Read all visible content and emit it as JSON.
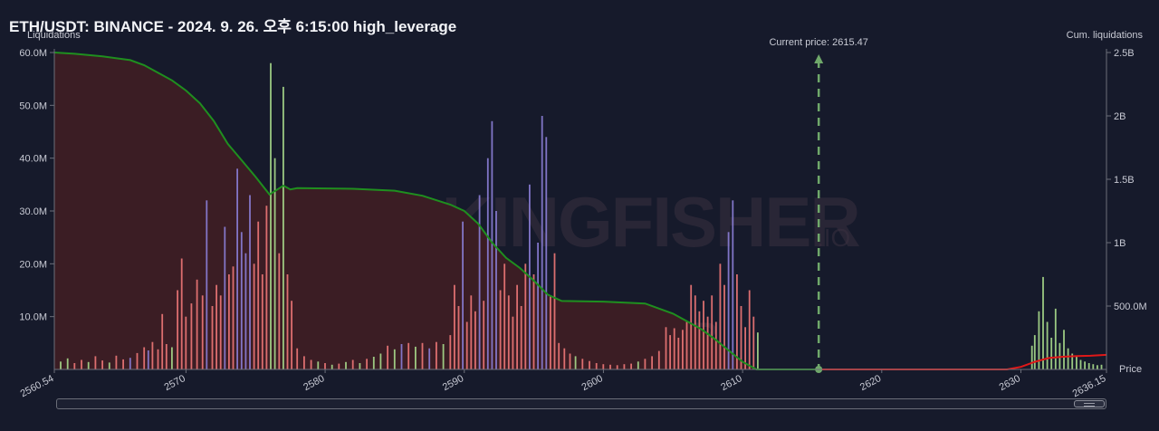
{
  "title": "ETH/USDT: BINANCE - 2024. 9. 26. 오후 6:15:00 high_leverage",
  "watermark": {
    "brand": "THE KINGFISHER",
    "suffix": ".IO"
  },
  "chart_data": {
    "type": "bar",
    "ylabel_left": "Liquidations",
    "ylabel_right": "Cum. liquidations",
    "xlabel": "Price",
    "current_price_label": "Current price: 2615.47",
    "current_price": 2615.47,
    "xlim": [
      2560.54,
      2636.15
    ],
    "ylim_left": [
      0,
      60000000
    ],
    "ylim_right": [
      0,
      2500000000
    ],
    "x_ticks": [
      2560.54,
      2570,
      2580,
      2590,
      2600,
      2610,
      2620,
      2630,
      2636.15
    ],
    "x_tick_labels": [
      "2560.54",
      "2570",
      "2580",
      "2590",
      "2600",
      "2610",
      "2620",
      "2630",
      "2636.15"
    ],
    "y_left_ticks": [
      10000000,
      20000000,
      30000000,
      40000000,
      50000000,
      60000000
    ],
    "y_left_tick_labels": [
      "10.0M",
      "20.0M",
      "30.0M",
      "40.0M",
      "50.0M",
      "60.0M"
    ],
    "y_right_ticks": [
      500000000,
      1000000000,
      1500000000,
      2000000000,
      2500000000
    ],
    "y_right_tick_labels": [
      "500.0M",
      "1B",
      "1.5B",
      "2B",
      "2.5B"
    ],
    "series_colors": {
      "long_liq_bars": "#f07878",
      "long_liq_bars_alt": "#8c7fd8",
      "short_liq_bars": "#a8dc8c",
      "cum_long": "#1f8f1f",
      "cum_short": "#e01818",
      "cum_long_fill": "#3b1d24",
      "current_price_line": "#6fa86a"
    },
    "bars": [
      {
        "x": 2561.0,
        "y": 1500000,
        "c": "s"
      },
      {
        "x": 2561.5,
        "y": 2100000,
        "c": "s"
      },
      {
        "x": 2562.0,
        "y": 1200000,
        "c": "r"
      },
      {
        "x": 2562.5,
        "y": 1800000,
        "c": "r"
      },
      {
        "x": 2563.0,
        "y": 1400000,
        "c": "s"
      },
      {
        "x": 2563.5,
        "y": 2500000,
        "c": "r"
      },
      {
        "x": 2564.0,
        "y": 1700000,
        "c": "r"
      },
      {
        "x": 2564.5,
        "y": 1300000,
        "c": "s"
      },
      {
        "x": 2565.0,
        "y": 2600000,
        "c": "r"
      },
      {
        "x": 2565.5,
        "y": 1900000,
        "c": "r"
      },
      {
        "x": 2566.0,
        "y": 2200000,
        "c": "b"
      },
      {
        "x": 2566.5,
        "y": 3100000,
        "c": "r"
      },
      {
        "x": 2567.0,
        "y": 4200000,
        "c": "r"
      },
      {
        "x": 2567.3,
        "y": 3600000,
        "c": "b"
      },
      {
        "x": 2567.6,
        "y": 5200000,
        "c": "r"
      },
      {
        "x": 2568.0,
        "y": 3800000,
        "c": "r"
      },
      {
        "x": 2568.3,
        "y": 10500000,
        "c": "r"
      },
      {
        "x": 2568.6,
        "y": 4800000,
        "c": "r"
      },
      {
        "x": 2569.0,
        "y": 4200000,
        "c": "s"
      },
      {
        "x": 2569.4,
        "y": 15000000,
        "c": "r"
      },
      {
        "x": 2569.7,
        "y": 21000000,
        "c": "r"
      },
      {
        "x": 2570.0,
        "y": 10000000,
        "c": "r"
      },
      {
        "x": 2570.4,
        "y": 12500000,
        "c": "r"
      },
      {
        "x": 2570.8,
        "y": 17000000,
        "c": "r"
      },
      {
        "x": 2571.2,
        "y": 14000000,
        "c": "r"
      },
      {
        "x": 2571.5,
        "y": 32000000,
        "c": "b"
      },
      {
        "x": 2571.9,
        "y": 12000000,
        "c": "r"
      },
      {
        "x": 2572.2,
        "y": 16000000,
        "c": "r"
      },
      {
        "x": 2572.5,
        "y": 14000000,
        "c": "r"
      },
      {
        "x": 2572.8,
        "y": 27000000,
        "c": "b"
      },
      {
        "x": 2573.1,
        "y": 18000000,
        "c": "r"
      },
      {
        "x": 2573.4,
        "y": 19500000,
        "c": "r"
      },
      {
        "x": 2573.7,
        "y": 38000000,
        "c": "b"
      },
      {
        "x": 2574.0,
        "y": 26000000,
        "c": "b"
      },
      {
        "x": 2574.3,
        "y": 22000000,
        "c": "b"
      },
      {
        "x": 2574.6,
        "y": 33000000,
        "c": "b"
      },
      {
        "x": 2574.9,
        "y": 20000000,
        "c": "r"
      },
      {
        "x": 2575.2,
        "y": 28000000,
        "c": "r"
      },
      {
        "x": 2575.5,
        "y": 18000000,
        "c": "r"
      },
      {
        "x": 2575.8,
        "y": 31000000,
        "c": "r"
      },
      {
        "x": 2576.1,
        "y": 58000000,
        "c": "s"
      },
      {
        "x": 2576.4,
        "y": 40000000,
        "c": "s"
      },
      {
        "x": 2576.7,
        "y": 22000000,
        "c": "r"
      },
      {
        "x": 2577.0,
        "y": 53500000,
        "c": "s"
      },
      {
        "x": 2577.3,
        "y": 18000000,
        "c": "r"
      },
      {
        "x": 2577.6,
        "y": 13000000,
        "c": "r"
      },
      {
        "x": 2578.0,
        "y": 4000000,
        "c": "r"
      },
      {
        "x": 2578.5,
        "y": 2500000,
        "c": "r"
      },
      {
        "x": 2579.0,
        "y": 1800000,
        "c": "r"
      },
      {
        "x": 2579.5,
        "y": 1500000,
        "c": "s"
      },
      {
        "x": 2580.0,
        "y": 1200000,
        "c": "r"
      },
      {
        "x": 2580.5,
        "y": 900000,
        "c": "s"
      },
      {
        "x": 2581.0,
        "y": 1100000,
        "c": "r"
      },
      {
        "x": 2581.5,
        "y": 1400000,
        "c": "s"
      },
      {
        "x": 2582.0,
        "y": 1800000,
        "c": "r"
      },
      {
        "x": 2582.5,
        "y": 1200000,
        "c": "s"
      },
      {
        "x": 2583.0,
        "y": 2000000,
        "c": "r"
      },
      {
        "x": 2583.5,
        "y": 2400000,
        "c": "s"
      },
      {
        "x": 2584.0,
        "y": 3000000,
        "c": "s"
      },
      {
        "x": 2584.5,
        "y": 4500000,
        "c": "r"
      },
      {
        "x": 2585.0,
        "y": 3800000,
        "c": "s"
      },
      {
        "x": 2585.5,
        "y": 4800000,
        "c": "b"
      },
      {
        "x": 2586.0,
        "y": 5000000,
        "c": "r"
      },
      {
        "x": 2586.5,
        "y": 4300000,
        "c": "s"
      },
      {
        "x": 2587.0,
        "y": 5000000,
        "c": "r"
      },
      {
        "x": 2587.5,
        "y": 4000000,
        "c": "b"
      },
      {
        "x": 2588.0,
        "y": 5200000,
        "c": "r"
      },
      {
        "x": 2588.5,
        "y": 4800000,
        "c": "s"
      },
      {
        "x": 2589.0,
        "y": 6500000,
        "c": "r"
      },
      {
        "x": 2589.3,
        "y": 16000000,
        "c": "r"
      },
      {
        "x": 2589.6,
        "y": 12000000,
        "c": "r"
      },
      {
        "x": 2589.9,
        "y": 28000000,
        "c": "b"
      },
      {
        "x": 2590.2,
        "y": 9000000,
        "c": "r"
      },
      {
        "x": 2590.5,
        "y": 14000000,
        "c": "r"
      },
      {
        "x": 2590.8,
        "y": 11000000,
        "c": "r"
      },
      {
        "x": 2591.1,
        "y": 33000000,
        "c": "b"
      },
      {
        "x": 2591.4,
        "y": 13000000,
        "c": "r"
      },
      {
        "x": 2591.7,
        "y": 40000000,
        "c": "b"
      },
      {
        "x": 2592.0,
        "y": 47000000,
        "c": "b"
      },
      {
        "x": 2592.3,
        "y": 30000000,
        "c": "b"
      },
      {
        "x": 2592.6,
        "y": 15000000,
        "c": "r"
      },
      {
        "x": 2592.9,
        "y": 20000000,
        "c": "r"
      },
      {
        "x": 2593.2,
        "y": 14000000,
        "c": "r"
      },
      {
        "x": 2593.5,
        "y": 10000000,
        "c": "r"
      },
      {
        "x": 2593.8,
        "y": 16000000,
        "c": "r"
      },
      {
        "x": 2594.1,
        "y": 12000000,
        "c": "r"
      },
      {
        "x": 2594.4,
        "y": 20000000,
        "c": "r"
      },
      {
        "x": 2594.7,
        "y": 35000000,
        "c": "b"
      },
      {
        "x": 2595.0,
        "y": 18000000,
        "c": "r"
      },
      {
        "x": 2595.3,
        "y": 24000000,
        "c": "b"
      },
      {
        "x": 2595.6,
        "y": 48000000,
        "c": "b"
      },
      {
        "x": 2595.9,
        "y": 44000000,
        "c": "b"
      },
      {
        "x": 2596.2,
        "y": 14000000,
        "c": "r"
      },
      {
        "x": 2596.5,
        "y": 22000000,
        "c": "r"
      },
      {
        "x": 2596.8,
        "y": 5000000,
        "c": "r"
      },
      {
        "x": 2597.2,
        "y": 4000000,
        "c": "r"
      },
      {
        "x": 2597.6,
        "y": 3000000,
        "c": "r"
      },
      {
        "x": 2598.0,
        "y": 2500000,
        "c": "s"
      },
      {
        "x": 2598.5,
        "y": 2000000,
        "c": "r"
      },
      {
        "x": 2599.0,
        "y": 1600000,
        "c": "r"
      },
      {
        "x": 2599.5,
        "y": 1200000,
        "c": "r"
      },
      {
        "x": 2600.0,
        "y": 1000000,
        "c": "r"
      },
      {
        "x": 2600.5,
        "y": 900000,
        "c": "r"
      },
      {
        "x": 2601.0,
        "y": 800000,
        "c": "r"
      },
      {
        "x": 2601.5,
        "y": 1000000,
        "c": "r"
      },
      {
        "x": 2602.0,
        "y": 1100000,
        "c": "r"
      },
      {
        "x": 2602.5,
        "y": 1500000,
        "c": "s"
      },
      {
        "x": 2603.0,
        "y": 2000000,
        "c": "r"
      },
      {
        "x": 2603.5,
        "y": 2500000,
        "c": "r"
      },
      {
        "x": 2604.0,
        "y": 3500000,
        "c": "r"
      },
      {
        "x": 2604.5,
        "y": 8000000,
        "c": "r"
      },
      {
        "x": 2604.8,
        "y": 6500000,
        "c": "r"
      },
      {
        "x": 2605.1,
        "y": 7800000,
        "c": "r"
      },
      {
        "x": 2605.4,
        "y": 6000000,
        "c": "r"
      },
      {
        "x": 2605.7,
        "y": 7500000,
        "c": "r"
      },
      {
        "x": 2606.0,
        "y": 9000000,
        "c": "r"
      },
      {
        "x": 2606.3,
        "y": 16000000,
        "c": "r"
      },
      {
        "x": 2606.6,
        "y": 14000000,
        "c": "r"
      },
      {
        "x": 2606.9,
        "y": 11000000,
        "c": "r"
      },
      {
        "x": 2607.2,
        "y": 13000000,
        "c": "r"
      },
      {
        "x": 2607.5,
        "y": 10000000,
        "c": "r"
      },
      {
        "x": 2607.8,
        "y": 14000000,
        "c": "r"
      },
      {
        "x": 2608.1,
        "y": 9000000,
        "c": "r"
      },
      {
        "x": 2608.4,
        "y": 20000000,
        "c": "r"
      },
      {
        "x": 2608.7,
        "y": 16000000,
        "c": "r"
      },
      {
        "x": 2609.0,
        "y": 26000000,
        "c": "b"
      },
      {
        "x": 2609.3,
        "y": 32000000,
        "c": "b"
      },
      {
        "x": 2609.6,
        "y": 18000000,
        "c": "r"
      },
      {
        "x": 2609.9,
        "y": 12000000,
        "c": "r"
      },
      {
        "x": 2610.2,
        "y": 8000000,
        "c": "r"
      },
      {
        "x": 2610.5,
        "y": 15000000,
        "c": "r"
      },
      {
        "x": 2610.8,
        "y": 10000000,
        "c": "r"
      },
      {
        "x": 2611.1,
        "y": 7000000,
        "c": "s"
      },
      {
        "x": 2630.8,
        "y": 4500000,
        "c": "s"
      },
      {
        "x": 2631.0,
        "y": 6500000,
        "c": "s"
      },
      {
        "x": 2631.3,
        "y": 11000000,
        "c": "s"
      },
      {
        "x": 2631.6,
        "y": 17500000,
        "c": "s"
      },
      {
        "x": 2631.9,
        "y": 9000000,
        "c": "s"
      },
      {
        "x": 2632.2,
        "y": 6000000,
        "c": "s"
      },
      {
        "x": 2632.5,
        "y": 11500000,
        "c": "s"
      },
      {
        "x": 2632.8,
        "y": 5000000,
        "c": "s"
      },
      {
        "x": 2633.1,
        "y": 7500000,
        "c": "s"
      },
      {
        "x": 2633.4,
        "y": 4000000,
        "c": "s"
      },
      {
        "x": 2633.7,
        "y": 3000000,
        "c": "s"
      },
      {
        "x": 2634.0,
        "y": 2500000,
        "c": "s"
      },
      {
        "x": 2634.3,
        "y": 1800000,
        "c": "s"
      },
      {
        "x": 2634.6,
        "y": 1500000,
        "c": "s"
      },
      {
        "x": 2634.9,
        "y": 1200000,
        "c": "s"
      },
      {
        "x": 2635.2,
        "y": 1000000,
        "c": "s"
      },
      {
        "x": 2635.5,
        "y": 800000,
        "c": "s"
      },
      {
        "x": 2635.8,
        "y": 900000,
        "c": "s"
      }
    ],
    "cum_long_curve": [
      [
        2560.54,
        2500000000
      ],
      [
        2562,
        2490000000
      ],
      [
        2564,
        2470000000
      ],
      [
        2566,
        2440000000
      ],
      [
        2567,
        2400000000
      ],
      [
        2568,
        2340000000
      ],
      [
        2569,
        2280000000
      ],
      [
        2570,
        2200000000
      ],
      [
        2571,
        2100000000
      ],
      [
        2572,
        1960000000
      ],
      [
        2573,
        1780000000
      ],
      [
        2574,
        1650000000
      ],
      [
        2575,
        1520000000
      ],
      [
        2576,
        1380000000
      ],
      [
        2577,
        1450000000
      ],
      [
        2577.5,
        1420000000
      ],
      [
        2578,
        1430000000
      ],
      [
        2582,
        1425000000
      ],
      [
        2585,
        1410000000
      ],
      [
        2587,
        1370000000
      ],
      [
        2589,
        1300000000
      ],
      [
        2590,
        1250000000
      ],
      [
        2591,
        1150000000
      ],
      [
        2592,
        1000000000
      ],
      [
        2593,
        880000000
      ],
      [
        2594,
        800000000
      ],
      [
        2595,
        700000000
      ],
      [
        2596,
        590000000
      ],
      [
        2597,
        540000000
      ],
      [
        2600,
        535000000
      ],
      [
        2603,
        520000000
      ],
      [
        2605,
        440000000
      ],
      [
        2606,
        380000000
      ],
      [
        2607,
        320000000
      ],
      [
        2608,
        240000000
      ],
      [
        2609,
        150000000
      ],
      [
        2610,
        60000000
      ],
      [
        2611,
        0
      ],
      [
        2615.47,
        0
      ]
    ],
    "cum_short_curve": [
      [
        2615.47,
        0
      ],
      [
        2629,
        0
      ],
      [
        2630,
        20000000
      ],
      [
        2631,
        60000000
      ],
      [
        2632,
        90000000
      ],
      [
        2633,
        100000000
      ],
      [
        2634,
        105000000
      ],
      [
        2635,
        108000000
      ],
      [
        2636.15,
        115000000
      ]
    ]
  },
  "scrollbar": {
    "label": "range-scrollbar"
  }
}
